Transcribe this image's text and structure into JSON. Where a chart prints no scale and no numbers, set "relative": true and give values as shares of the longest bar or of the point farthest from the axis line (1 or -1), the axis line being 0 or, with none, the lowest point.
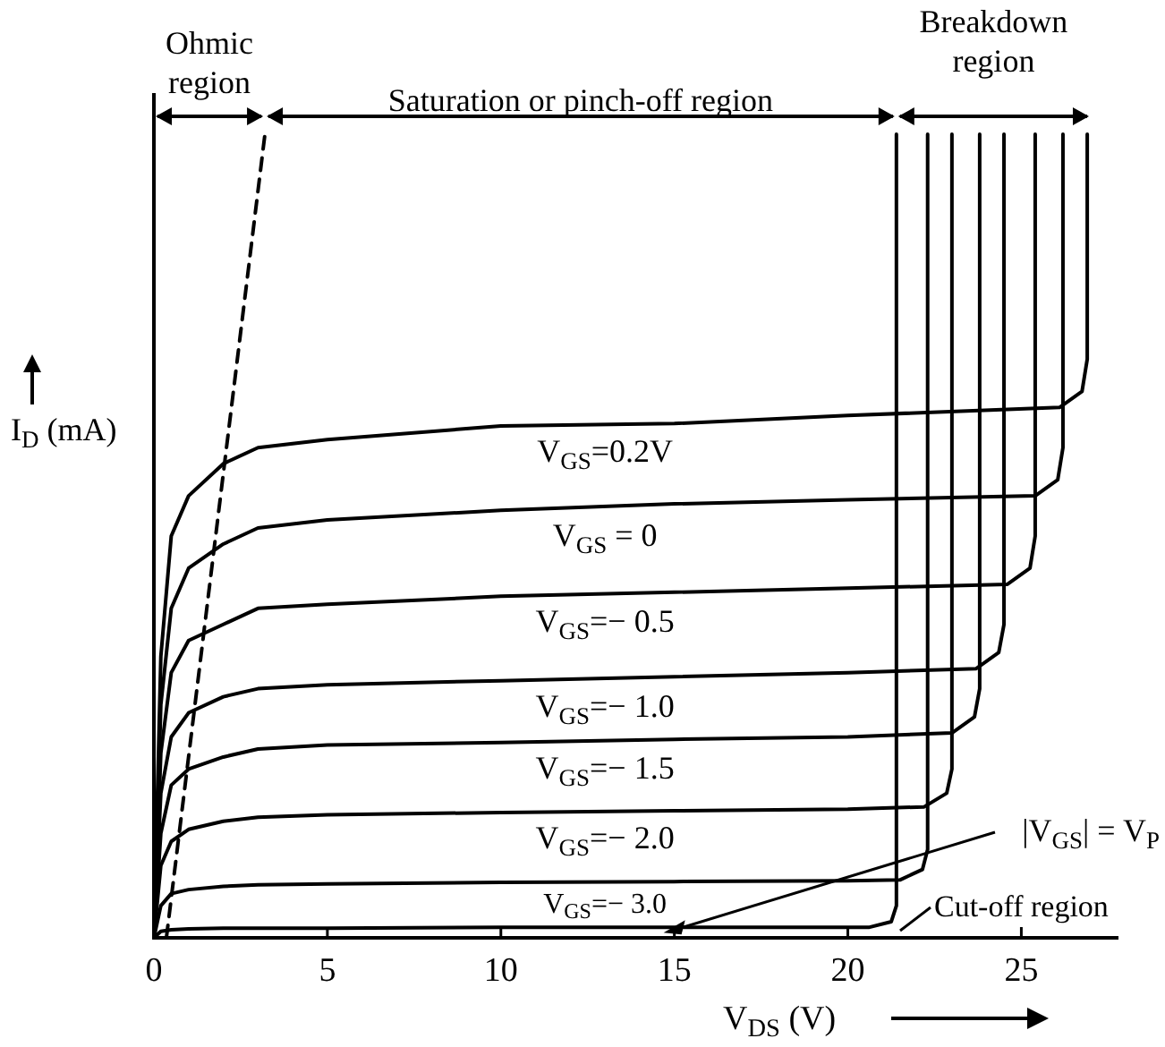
{
  "chart_data": {
    "type": "line",
    "relative": true,
    "xlabel": "V$_{DS}$ (V)",
    "ylabel": "I$_{D}$ (mA)",
    "xlim": [
      0,
      27.8
    ],
    "xticks": [
      0,
      5,
      10,
      15,
      20,
      25
    ],
    "tick_labels": "x",
    "legend": false,
    "line_style": "solid",
    "annotations": [
      "Ohmic region",
      "Saturation or pinch-off region",
      "Breakdown region",
      "Cut-off region"
    ],
    "series": [
      {
        "name": "V$_{GS}$=0.2V",
        "color": "#000000",
        "x": [
          0,
          0.2,
          0.5,
          1,
          2,
          3,
          5,
          10,
          15,
          20,
          26.1,
          26.75,
          26.9,
          26.9
        ],
        "values": [
          0,
          0.35,
          0.5,
          0.55,
          0.59,
          0.61,
          0.62,
          0.637,
          0.64,
          0.65,
          0.66,
          0.68,
          0.72,
          1
        ]
      },
      {
        "name": "V$_{GS}$ = 0",
        "color": "#000000",
        "x": [
          0,
          0.2,
          0.5,
          1,
          2,
          3,
          5,
          10,
          15,
          20,
          25.4,
          26.05,
          26.2,
          26.2
        ],
        "values": [
          0,
          0.29,
          0.41,
          0.46,
          0.49,
          0.51,
          0.52,
          0.532,
          0.54,
          0.545,
          0.55,
          0.57,
          0.61,
          1
        ]
      },
      {
        "name": "V$_{GS}$=− 0.5",
        "color": "#000000",
        "x": [
          0,
          0.2,
          0.5,
          1,
          2,
          3,
          5,
          10,
          15,
          20,
          24.6,
          25.25,
          25.4,
          25.4
        ],
        "values": [
          0,
          0.23,
          0.33,
          0.37,
          0.39,
          0.41,
          0.415,
          0.425,
          0.43,
          0.435,
          0.44,
          0.46,
          0.5,
          1
        ]
      },
      {
        "name": "V$_{GS}$=− 1.0",
        "color": "#000000",
        "x": [
          0,
          0.2,
          0.5,
          1,
          2,
          3,
          5,
          10,
          15,
          20,
          23.7,
          24.35,
          24.5,
          24.5
        ],
        "values": [
          0,
          0.18,
          0.25,
          0.28,
          0.3,
          0.31,
          0.315,
          0.32,
          0.325,
          0.33,
          0.335,
          0.355,
          0.39,
          1
        ]
      },
      {
        "name": "V$_{GS}$=− 1.5",
        "color": "#000000",
        "x": [
          0,
          0.2,
          0.5,
          1,
          2,
          3,
          5,
          10,
          15,
          20,
          23,
          23.65,
          23.8,
          23.8
        ],
        "values": [
          0,
          0.13,
          0.19,
          0.21,
          0.225,
          0.235,
          0.24,
          0.243,
          0.247,
          0.25,
          0.255,
          0.275,
          0.31,
          1
        ]
      },
      {
        "name": "V$_{GS}$=− 2.0",
        "color": "#000000",
        "x": [
          0,
          0.2,
          0.5,
          1,
          2,
          3,
          5,
          10,
          15,
          20,
          22.2,
          22.85,
          23,
          23
        ],
        "values": [
          0,
          0.09,
          0.12,
          0.135,
          0.145,
          0.15,
          0.153,
          0.156,
          0.158,
          0.16,
          0.163,
          0.18,
          0.21,
          1
        ]
      },
      {
        "name": "V$_{GS}$=− 3.0",
        "color": "#000000",
        "x": [
          0,
          0.2,
          0.5,
          1,
          2,
          3,
          5,
          10,
          15,
          20,
          21.5,
          22.15,
          22.3,
          22.3
        ],
        "values": [
          0,
          0.04,
          0.055,
          0.06,
          0.064,
          0.066,
          0.067,
          0.069,
          0.07,
          0.071,
          0.072,
          0.085,
          0.11,
          1
        ]
      },
      {
        "name": "|V$_{GS}$| = V$_{P}$",
        "color": "#000000",
        "x": [
          0,
          0.2,
          0.5,
          1,
          2,
          3,
          5,
          10,
          15,
          20,
          20.6,
          21.25,
          21.4,
          21.4
        ],
        "values": [
          0,
          0.008,
          0.01,
          0.011,
          0.012,
          0.012,
          0.012,
          0.013,
          0.013,
          0.013,
          0.013,
          0.02,
          0.04,
          1
        ]
      },
      {
        "color": "#000000",
        "line_style": "dashed",
        "x": [
          0.36,
          3.2
        ],
        "values": [
          0,
          1
        ]
      }
    ]
  }
}
